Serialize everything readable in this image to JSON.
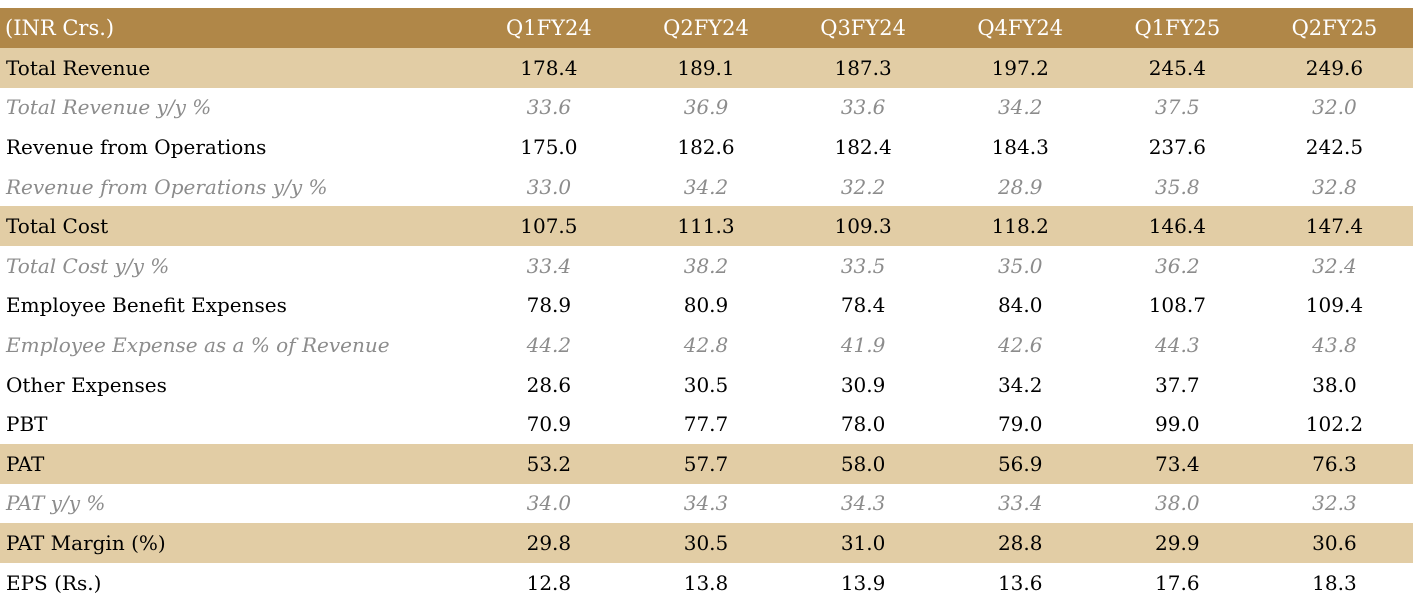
{
  "table": {
    "header": {
      "label": "(INR Crs.)",
      "columns": [
        "Q1FY24",
        "Q2FY24",
        "Q3FY24",
        "Q4FY24",
        "Q1FY25",
        "Q2FY25"
      ]
    },
    "rows": [
      {
        "label": "Total Revenue",
        "values": [
          "178.4",
          "189.1",
          "187.3",
          "197.2",
          "245.4",
          "249.6"
        ],
        "style": "shaded"
      },
      {
        "label": "Total Revenue y/y %",
        "values": [
          "33.6",
          "36.9",
          "33.6",
          "34.2",
          "37.5",
          "32.0"
        ],
        "style": "pct"
      },
      {
        "label": "Revenue from Operations",
        "values": [
          "175.0",
          "182.6",
          "182.4",
          "184.3",
          "237.6",
          "242.5"
        ],
        "style": "plain"
      },
      {
        "label": "Revenue from Operations y/y %",
        "values": [
          "33.0",
          "34.2",
          "32.2",
          "28.9",
          "35.8",
          "32.8"
        ],
        "style": "pct"
      },
      {
        "label": "Total Cost",
        "values": [
          "107.5",
          "111.3",
          "109.3",
          "118.2",
          "146.4",
          "147.4"
        ],
        "style": "shaded"
      },
      {
        "label": "Total Cost y/y %",
        "values": [
          "33.4",
          "38.2",
          "33.5",
          "35.0",
          "36.2",
          "32.4"
        ],
        "style": "pct"
      },
      {
        "label": "Employee Benefit Expenses",
        "values": [
          "78.9",
          "80.9",
          "78.4",
          "84.0",
          "108.7",
          "109.4"
        ],
        "style": "plain"
      },
      {
        "label": "Employee Expense as a % of Revenue",
        "values": [
          "44.2",
          "42.8",
          "41.9",
          "42.6",
          "44.3",
          "43.8"
        ],
        "style": "pct"
      },
      {
        "label": "Other Expenses",
        "values": [
          "28.6",
          "30.5",
          "30.9",
          "34.2",
          "37.7",
          "38.0"
        ],
        "style": "plain"
      },
      {
        "label": "PBT",
        "values": [
          "70.9",
          "77.7",
          "78.0",
          "79.0",
          "99.0",
          "102.2"
        ],
        "style": "plain"
      },
      {
        "label": "PAT",
        "values": [
          "53.2",
          "57.7",
          "58.0",
          "56.9",
          "73.4",
          "76.3"
        ],
        "style": "shaded"
      },
      {
        "label": "PAT y/y %",
        "values": [
          "34.0",
          "34.3",
          "34.3",
          "33.4",
          "38.0",
          "32.3"
        ],
        "style": "pct"
      },
      {
        "label": "PAT Margin (%)",
        "values": [
          "29.8",
          "30.5",
          "31.0",
          "28.8",
          "29.9",
          "30.6"
        ],
        "style": "shaded"
      },
      {
        "label": "EPS (Rs.)",
        "values": [
          "12.8",
          "13.8",
          "13.9",
          "13.6",
          "17.6",
          "18.3"
        ],
        "style": "plain"
      }
    ],
    "colors": {
      "header_bg": "#b08748",
      "shaded_bg": "#e2cda5",
      "pct_text": "#8c8c8c"
    }
  }
}
